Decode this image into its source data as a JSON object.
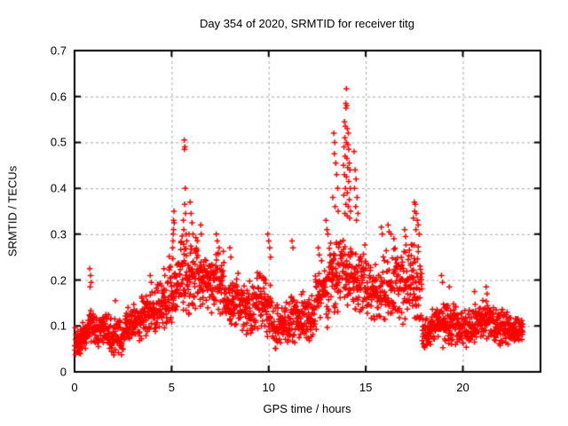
{
  "chart_data": {
    "type": "scatter",
    "title": "Day 354 of 2020, SRMTID for receiver titg",
    "xlabel": "GPS time / hours",
    "ylabel": "SRMTID / TECUs",
    "xlim": [
      0,
      24
    ],
    "ylim": [
      0,
      0.7
    ],
    "xticks": {
      "values": [
        0,
        5,
        10,
        15,
        20
      ],
      "labels": [
        "0",
        "5",
        "10",
        "15",
        "20"
      ]
    },
    "yticks": {
      "values": [
        0,
        0.1,
        0.2,
        0.3,
        0.4,
        0.5,
        0.6,
        0.7
      ],
      "labels": [
        "0",
        "0.1",
        "0.2",
        "0.3",
        "0.4",
        "0.5",
        "0.6",
        "0.7"
      ]
    },
    "grid": {
      "visible": true,
      "style": "dashed",
      "color": "#a8a8a8"
    },
    "legend": "none",
    "background": "#ffffff",
    "border_color": "#000000",
    "series": [
      {
        "name": "SRMTID",
        "marker": "plus",
        "color": "#ff0000",
        "seed": 354,
        "band_profile": [
          [
            0.0,
            0.3,
            0.03,
            0.1,
            30
          ],
          [
            0.3,
            0.7,
            0.04,
            0.12,
            40
          ],
          [
            0.7,
            1.0,
            0.05,
            0.15,
            30
          ],
          [
            1.0,
            1.8,
            0.05,
            0.13,
            75
          ],
          [
            1.8,
            2.6,
            0.03,
            0.12,
            75
          ],
          [
            2.6,
            3.4,
            0.06,
            0.15,
            75
          ],
          [
            3.4,
            4.2,
            0.07,
            0.18,
            75
          ],
          [
            4.2,
            4.8,
            0.08,
            0.2,
            55
          ],
          [
            4.8,
            5.3,
            0.1,
            0.26,
            48
          ],
          [
            5.3,
            5.9,
            0.12,
            0.3,
            55
          ],
          [
            5.9,
            6.4,
            0.13,
            0.3,
            48
          ],
          [
            6.4,
            7.0,
            0.13,
            0.26,
            55
          ],
          [
            7.0,
            7.7,
            0.12,
            0.28,
            62
          ],
          [
            7.7,
            8.5,
            0.09,
            0.22,
            72
          ],
          [
            8.5,
            9.4,
            0.07,
            0.2,
            80
          ],
          [
            9.4,
            10.1,
            0.07,
            0.22,
            62
          ],
          [
            10.1,
            11.0,
            0.04,
            0.16,
            80
          ],
          [
            11.0,
            11.6,
            0.05,
            0.18,
            55
          ],
          [
            11.6,
            12.4,
            0.06,
            0.18,
            72
          ],
          [
            12.4,
            13.1,
            0.09,
            0.25,
            62
          ],
          [
            13.1,
            13.7,
            0.12,
            0.3,
            55
          ],
          [
            13.7,
            14.3,
            0.13,
            0.32,
            50
          ],
          [
            14.3,
            15.0,
            0.12,
            0.28,
            62
          ],
          [
            15.0,
            15.8,
            0.1,
            0.25,
            70
          ],
          [
            15.8,
            16.6,
            0.1,
            0.28,
            70
          ],
          [
            16.6,
            17.3,
            0.1,
            0.28,
            62
          ],
          [
            17.3,
            17.9,
            0.08,
            0.3,
            55
          ],
          [
            17.9,
            18.4,
            0.04,
            0.12,
            48
          ],
          [
            18.4,
            19.6,
            0.05,
            0.16,
            110
          ],
          [
            19.6,
            20.8,
            0.05,
            0.15,
            110
          ],
          [
            20.8,
            21.6,
            0.06,
            0.16,
            75
          ],
          [
            21.6,
            22.4,
            0.05,
            0.14,
            75
          ],
          [
            22.4,
            23.1,
            0.06,
            0.12,
            65
          ]
        ],
        "spike_points": [
          [
            0.78,
            0.225
          ],
          [
            0.82,
            0.21
          ],
          [
            0.85,
            0.195
          ],
          [
            0.8,
            0.185
          ],
          [
            2.1,
            0.155
          ],
          [
            3.9,
            0.21
          ],
          [
            3.95,
            0.195
          ],
          [
            4.6,
            0.225
          ],
          [
            4.65,
            0.21
          ],
          [
            5.05,
            0.27
          ],
          [
            5.08,
            0.3
          ],
          [
            5.1,
            0.33
          ],
          [
            5.12,
            0.35
          ],
          [
            5.1,
            0.31
          ],
          [
            5.07,
            0.285
          ],
          [
            5.13,
            0.325
          ],
          [
            5.65,
            0.505
          ],
          [
            5.68,
            0.49
          ],
          [
            5.66,
            0.485
          ],
          [
            5.7,
            0.4
          ],
          [
            5.67,
            0.365
          ],
          [
            5.72,
            0.345
          ],
          [
            5.6,
            0.33
          ],
          [
            5.63,
            0.31
          ],
          [
            5.75,
            0.3
          ],
          [
            5.78,
            0.285
          ],
          [
            5.95,
            0.37
          ],
          [
            6.0,
            0.345
          ],
          [
            6.05,
            0.325
          ],
          [
            5.9,
            0.3
          ],
          [
            6.1,
            0.3
          ],
          [
            6.5,
            0.32
          ],
          [
            6.52,
            0.3
          ],
          [
            7.3,
            0.3
          ],
          [
            7.35,
            0.285
          ],
          [
            7.45,
            0.27
          ],
          [
            8.0,
            0.27
          ],
          [
            8.05,
            0.25
          ],
          [
            9.95,
            0.3
          ],
          [
            10.0,
            0.285
          ],
          [
            10.05,
            0.27
          ],
          [
            10.1,
            0.25
          ],
          [
            11.2,
            0.285
          ],
          [
            11.25,
            0.27
          ],
          [
            12.55,
            0.27
          ],
          [
            12.6,
            0.255
          ],
          [
            12.95,
            0.33
          ],
          [
            13.0,
            0.31
          ],
          [
            13.05,
            0.3
          ],
          [
            13.35,
            0.52
          ],
          [
            13.4,
            0.5
          ],
          [
            13.38,
            0.475
          ],
          [
            13.45,
            0.455
          ],
          [
            13.5,
            0.43
          ],
          [
            13.55,
            0.4
          ],
          [
            13.3,
            0.38
          ],
          [
            13.42,
            0.36
          ],
          [
            13.58,
            0.35
          ],
          [
            14.0,
            0.617
          ],
          [
            13.97,
            0.585
          ],
          [
            14.02,
            0.58
          ],
          [
            13.98,
            0.575
          ],
          [
            13.9,
            0.545
          ],
          [
            13.95,
            0.535
          ],
          [
            14.05,
            0.53
          ],
          [
            14.1,
            0.52
          ],
          [
            13.92,
            0.51
          ],
          [
            14.0,
            0.5
          ],
          [
            14.08,
            0.495
          ],
          [
            13.88,
            0.49
          ],
          [
            14.12,
            0.485
          ],
          [
            13.93,
            0.47
          ],
          [
            14.03,
            0.465
          ],
          [
            14.15,
            0.455
          ],
          [
            13.85,
            0.45
          ],
          [
            14.07,
            0.445
          ],
          [
            14.18,
            0.44
          ],
          [
            13.9,
            0.43
          ],
          [
            14.0,
            0.425
          ],
          [
            14.12,
            0.415
          ],
          [
            13.95,
            0.4
          ],
          [
            14.2,
            0.4
          ],
          [
            14.05,
            0.39
          ],
          [
            13.87,
            0.385
          ],
          [
            14.15,
            0.375
          ],
          [
            13.98,
            0.365
          ],
          [
            14.1,
            0.36
          ],
          [
            14.22,
            0.35
          ],
          [
            13.92,
            0.345
          ],
          [
            14.04,
            0.34
          ],
          [
            14.17,
            0.335
          ],
          [
            14.4,
            0.48
          ],
          [
            14.45,
            0.44
          ],
          [
            14.5,
            0.42
          ],
          [
            14.42,
            0.4
          ],
          [
            14.55,
            0.38
          ],
          [
            14.48,
            0.36
          ],
          [
            14.6,
            0.345
          ],
          [
            14.52,
            0.33
          ],
          [
            15.8,
            0.315
          ],
          [
            15.85,
            0.3
          ],
          [
            16.15,
            0.32
          ],
          [
            16.2,
            0.305
          ],
          [
            16.3,
            0.3
          ],
          [
            16.45,
            0.29
          ],
          [
            17.0,
            0.31
          ],
          [
            17.05,
            0.295
          ],
          [
            17.5,
            0.37
          ],
          [
            17.55,
            0.365
          ],
          [
            17.52,
            0.35
          ],
          [
            17.6,
            0.345
          ],
          [
            17.45,
            0.335
          ],
          [
            17.65,
            0.33
          ],
          [
            17.7,
            0.32
          ],
          [
            17.58,
            0.31
          ],
          [
            17.75,
            0.3
          ],
          [
            18.9,
            0.21
          ],
          [
            18.95,
            0.195
          ],
          [
            19.3,
            0.185
          ],
          [
            20.6,
            0.175
          ],
          [
            21.2,
            0.185
          ],
          [
            21.25,
            0.17
          ]
        ]
      }
    ]
  }
}
